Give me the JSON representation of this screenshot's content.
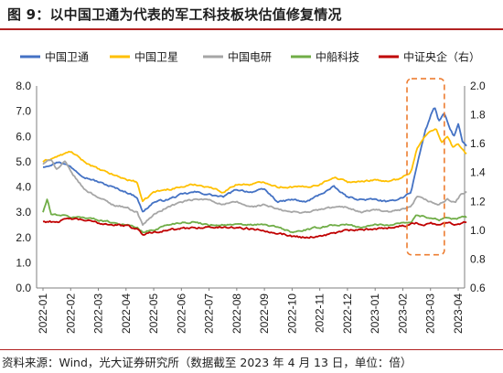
{
  "figure": {
    "title": "图 9：以中国卫通为代表的军工科技板块估值修复情况",
    "source": "资料来源：Wind，光大证券研究所（数据截至 2023 年 4 月 13 日，单位：倍）"
  },
  "chart_data": {
    "type": "line",
    "x_labels": [
      "2022-01",
      "2022-02",
      "2022-03",
      "2022-04",
      "2022-05",
      "2022-06",
      "2022-07",
      "2022-08",
      "2022-09",
      "2022-10",
      "2022-11",
      "2022-12",
      "2023-01",
      "2023-02",
      "2023-03",
      "2023-04"
    ],
    "ylim_left": [
      0,
      8
    ],
    "yticks_left": [
      "0.0",
      "1.0",
      "2.0",
      "3.0",
      "4.0",
      "5.0",
      "6.0",
      "7.0",
      "8.0"
    ],
    "ylim_right": [
      0.6,
      2.0
    ],
    "yticks_right": [
      "0.6",
      "0.8",
      "1.0",
      "1.2",
      "1.4",
      "1.6",
      "1.8",
      "2.0"
    ],
    "grid": false,
    "legend_position": "top",
    "series": [
      {
        "name": "中国卫通",
        "color": "#4472c4",
        "axis": "left",
        "anchors": [
          [
            0,
            4.8
          ],
          [
            0.6,
            5.0
          ],
          [
            1,
            4.8
          ],
          [
            1.5,
            4.4
          ],
          [
            2,
            4.2
          ],
          [
            2.5,
            4.0
          ],
          [
            3,
            3.8
          ],
          [
            3.4,
            3.6
          ],
          [
            3.6,
            3.0
          ],
          [
            4,
            3.4
          ],
          [
            4.5,
            3.5
          ],
          [
            5,
            3.7
          ],
          [
            5.5,
            3.8
          ],
          [
            6,
            3.7
          ],
          [
            6.5,
            3.6
          ],
          [
            7,
            3.9
          ],
          [
            7.5,
            3.8
          ],
          [
            8,
            3.9
          ],
          [
            8.5,
            3.4
          ],
          [
            9,
            3.5
          ],
          [
            9.5,
            3.4
          ],
          [
            10,
            3.7
          ],
          [
            10.5,
            4.0
          ],
          [
            11,
            3.6
          ],
          [
            11.5,
            3.5
          ],
          [
            12,
            3.5
          ],
          [
            12.5,
            3.4
          ],
          [
            13,
            3.6
          ],
          [
            13.3,
            3.8
          ],
          [
            13.5,
            4.8
          ],
          [
            13.8,
            6.2
          ],
          [
            14,
            6.8
          ],
          [
            14.15,
            7.2
          ],
          [
            14.3,
            6.6
          ],
          [
            14.5,
            6.9
          ],
          [
            14.7,
            6.3
          ],
          [
            14.85,
            6.0
          ],
          [
            15,
            6.5
          ],
          [
            15.15,
            5.8
          ],
          [
            15.3,
            5.6
          ]
        ]
      },
      {
        "name": "中国卫星",
        "color": "#ffc000",
        "axis": "left",
        "anchors": [
          [
            0,
            5.0
          ],
          [
            0.5,
            5.2
          ],
          [
            1,
            5.4
          ],
          [
            1.5,
            5.0
          ],
          [
            2,
            4.7
          ],
          [
            2.5,
            4.5
          ],
          [
            3,
            4.3
          ],
          [
            3.4,
            4.2
          ],
          [
            3.6,
            3.4
          ],
          [
            4,
            3.8
          ],
          [
            4.5,
            3.9
          ],
          [
            5,
            4.0
          ],
          [
            5.5,
            4.1
          ],
          [
            6,
            4.0
          ],
          [
            6.5,
            3.8
          ],
          [
            7,
            4.1
          ],
          [
            7.5,
            4.1
          ],
          [
            8,
            4.2
          ],
          [
            8.5,
            4.0
          ],
          [
            9,
            4.0
          ],
          [
            9.5,
            4.0
          ],
          [
            10,
            4.1
          ],
          [
            10.5,
            4.4
          ],
          [
            11,
            4.2
          ],
          [
            11.5,
            4.2
          ],
          [
            12,
            4.3
          ],
          [
            12.5,
            4.2
          ],
          [
            13,
            4.4
          ],
          [
            13.3,
            4.6
          ],
          [
            13.5,
            5.5
          ],
          [
            13.8,
            6.0
          ],
          [
            14,
            6.2
          ],
          [
            14.2,
            6.3
          ],
          [
            14.4,
            5.8
          ],
          [
            14.6,
            6.0
          ],
          [
            14.8,
            5.6
          ],
          [
            15,
            5.7
          ],
          [
            15.2,
            5.4
          ],
          [
            15.3,
            5.3
          ]
        ]
      },
      {
        "name": "中国电研",
        "color": "#a6a6a6",
        "axis": "left",
        "anchors": [
          [
            0,
            4.9
          ],
          [
            0.3,
            5.1
          ],
          [
            0.5,
            4.7
          ],
          [
            0.8,
            5.0
          ],
          [
            1,
            4.6
          ],
          [
            1.5,
            3.9
          ],
          [
            2,
            3.6
          ],
          [
            2.5,
            3.3
          ],
          [
            3,
            3.2
          ],
          [
            3.4,
            3.0
          ],
          [
            3.6,
            2.5
          ],
          [
            4,
            2.9
          ],
          [
            4.5,
            3.2
          ],
          [
            5,
            3.4
          ],
          [
            5.5,
            3.5
          ],
          [
            6,
            3.5
          ],
          [
            6.5,
            3.3
          ],
          [
            7,
            3.4
          ],
          [
            7.5,
            3.2
          ],
          [
            8,
            3.3
          ],
          [
            8.5,
            3.1
          ],
          [
            9,
            3.0
          ],
          [
            9.5,
            3.0
          ],
          [
            10,
            3.1
          ],
          [
            10.5,
            3.2
          ],
          [
            11,
            3.2
          ],
          [
            11.5,
            3.0
          ],
          [
            12,
            3.1
          ],
          [
            12.5,
            3.0
          ],
          [
            13,
            3.1
          ],
          [
            13.3,
            3.2
          ],
          [
            13.5,
            3.6
          ],
          [
            13.8,
            3.5
          ],
          [
            14,
            3.4
          ],
          [
            14.3,
            3.3
          ],
          [
            14.6,
            3.5
          ],
          [
            14.9,
            3.4
          ],
          [
            15.1,
            3.7
          ],
          [
            15.3,
            3.8
          ]
        ]
      },
      {
        "name": "中船科技",
        "color": "#70ad47",
        "axis": "left",
        "anchors": [
          [
            0,
            3.0
          ],
          [
            0.15,
            3.5
          ],
          [
            0.3,
            2.9
          ],
          [
            0.6,
            2.9
          ],
          [
            1,
            2.8
          ],
          [
            1.5,
            2.8
          ],
          [
            2,
            2.7
          ],
          [
            2.5,
            2.6
          ],
          [
            3,
            2.5
          ],
          [
            3.4,
            2.4
          ],
          [
            3.6,
            2.2
          ],
          [
            4,
            2.3
          ],
          [
            4.5,
            2.5
          ],
          [
            5,
            2.6
          ],
          [
            5.5,
            2.6
          ],
          [
            6,
            2.5
          ],
          [
            6.5,
            2.5
          ],
          [
            7,
            2.5
          ],
          [
            7.5,
            2.5
          ],
          [
            8,
            2.5
          ],
          [
            8.5,
            2.4
          ],
          [
            9,
            2.2
          ],
          [
            9.5,
            2.3
          ],
          [
            10,
            2.4
          ],
          [
            10.5,
            2.5
          ],
          [
            11,
            2.5
          ],
          [
            11.5,
            2.4
          ],
          [
            12,
            2.5
          ],
          [
            12.5,
            2.5
          ],
          [
            13,
            2.6
          ],
          [
            13.3,
            2.6
          ],
          [
            13.5,
            2.9
          ],
          [
            13.8,
            2.8
          ],
          [
            14,
            2.8
          ],
          [
            14.3,
            2.7
          ],
          [
            14.6,
            2.8
          ],
          [
            14.9,
            2.7
          ],
          [
            15.1,
            2.8
          ],
          [
            15.3,
            2.8
          ]
        ]
      },
      {
        "name": "中证央企（右）",
        "color": "#c00000",
        "axis": "right",
        "anchors": [
          [
            0,
            1.06
          ],
          [
            0.5,
            1.06
          ],
          [
            1,
            1.08
          ],
          [
            1.5,
            1.07
          ],
          [
            2,
            1.05
          ],
          [
            2.5,
            1.04
          ],
          [
            3,
            1.03
          ],
          [
            3.4,
            1.01
          ],
          [
            3.6,
            0.97
          ],
          [
            4,
            0.99
          ],
          [
            4.5,
            1.0
          ],
          [
            5,
            1.01
          ],
          [
            5.5,
            1.02
          ],
          [
            6,
            1.02
          ],
          [
            6.5,
            1.02
          ],
          [
            7,
            1.02
          ],
          [
            7.5,
            1.01
          ],
          [
            8,
            1.0
          ],
          [
            8.5,
            0.98
          ],
          [
            9,
            0.96
          ],
          [
            9.5,
            0.95
          ],
          [
            10,
            0.96
          ],
          [
            10.5,
            0.98
          ],
          [
            11,
            1.0
          ],
          [
            11.5,
            1.0
          ],
          [
            12,
            1.01
          ],
          [
            12.5,
            1.02
          ],
          [
            13,
            1.03
          ],
          [
            13.3,
            1.04
          ],
          [
            13.5,
            1.05
          ],
          [
            13.8,
            1.04
          ],
          [
            14,
            1.05
          ],
          [
            14.3,
            1.04
          ],
          [
            14.6,
            1.05
          ],
          [
            14.9,
            1.04
          ],
          [
            15.1,
            1.05
          ],
          [
            15.3,
            1.06
          ]
        ]
      }
    ],
    "highlight_box": {
      "x_from": 13.15,
      "x_to": 14.5,
      "y_from": 0.83,
      "y_to": 2.05,
      "axis": "right",
      "color": "#ed7d31"
    }
  }
}
